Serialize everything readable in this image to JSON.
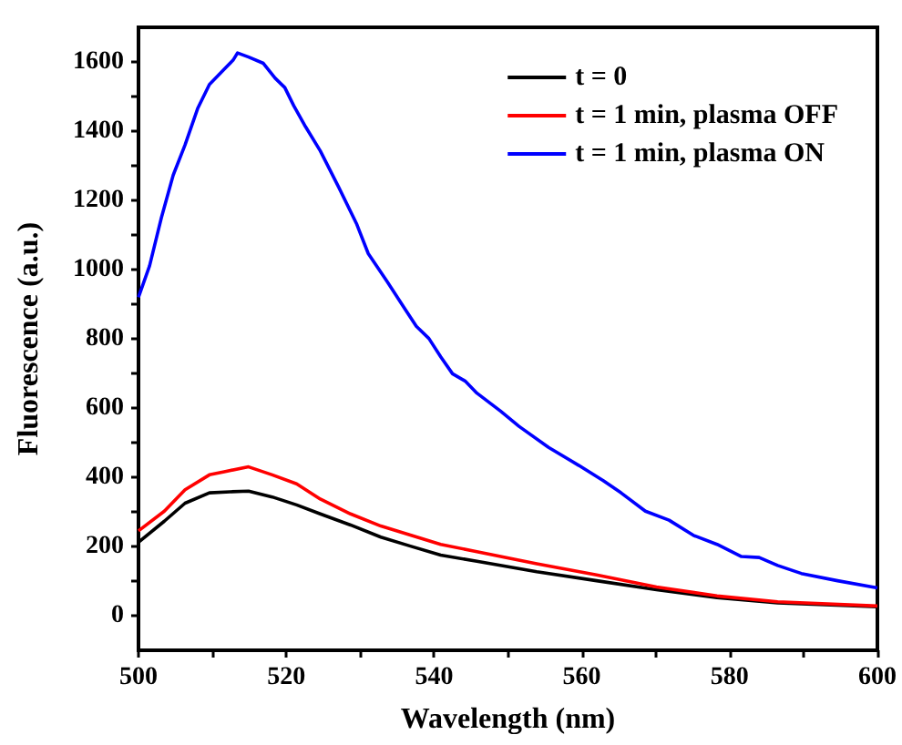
{
  "chart_data": {
    "type": "line",
    "xlabel": "Wavelength (nm)",
    "ylabel": "Fluorescence (a.u.)",
    "xlim": [
      500,
      600
    ],
    "xticks": [
      500,
      520,
      540,
      560,
      580,
      600
    ],
    "ylim": [
      -100,
      1700
    ],
    "yticks": [
      0,
      200,
      400,
      600,
      800,
      1000,
      1200,
      1400,
      1600
    ],
    "grid": false,
    "legend": "top right",
    "marker": "none",
    "line_style": "solid",
    "series": [
      {
        "name": "t = 0",
        "color": "#000000",
        "x": [
          500,
          503.5,
          506.3,
          509.6,
          512.4,
          514.9,
          518.1,
          521.4,
          524.6,
          528.7,
          532.8,
          536.8,
          540.9,
          545.8,
          553.9,
          562,
          570.1,
          578.3,
          586.5,
          600
        ],
        "values": [
          212,
          273,
          325,
          355,
          358,
          360,
          343,
          320,
          294,
          262,
          227,
          201,
          175,
          157,
          127,
          101,
          75,
          52,
          37,
          26
        ]
      },
      {
        "name": "t = 1 min, plasma OFF",
        "color": "#ff0000",
        "x": [
          500,
          503.5,
          506.3,
          509.6,
          511.6,
          514.9,
          518.1,
          521.4,
          524.6,
          528.7,
          532.8,
          536.8,
          540.9,
          545.8,
          553.9,
          562,
          570.1,
          578.3,
          586.5,
          600
        ],
        "values": [
          245,
          302,
          364,
          407,
          416,
          430,
          407,
          381,
          337,
          294,
          259,
          233,
          206,
          185,
          150,
          118,
          83,
          57,
          40,
          28
        ]
      },
      {
        "name": "t = 1 min, plasma ON",
        "color": "#0000ff",
        "x": [
          500,
          501.5,
          503.1,
          504.7,
          506.3,
          508,
          509.6,
          511.6,
          512.8,
          513.4,
          514.9,
          516.9,
          518.5,
          519.8,
          521,
          522.6,
          524.6,
          527.1,
          529.5,
          531.1,
          533.6,
          536,
          537.6,
          539.3,
          540.9,
          542.5,
          544.2,
          545.8,
          549,
          551.5,
          555.5,
          559.6,
          562.9,
          565.3,
          568.6,
          571.8,
          575.1,
          578.3,
          581.6,
          584,
          586.5,
          589.7,
          594.6,
          600
        ],
        "values": [
          920,
          1011,
          1150,
          1273,
          1360,
          1465,
          1535,
          1579,
          1605,
          1626,
          1614,
          1596,
          1553,
          1526,
          1474,
          1413,
          1343,
          1238,
          1133,
          1046,
          967,
          888,
          836,
          801,
          748,
          699,
          678,
          643,
          591,
          547,
          486,
          434,
          390,
          355,
          302,
          276,
          232,
          206,
          171,
          168,
          145,
          122,
          101,
          80
        ]
      }
    ]
  }
}
